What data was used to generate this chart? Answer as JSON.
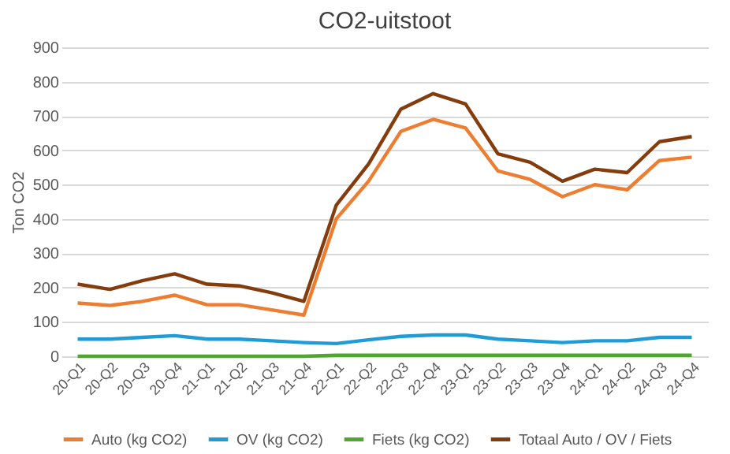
{
  "chart_data": {
    "type": "line",
    "title": "CO2-uitstoot",
    "ylabel": "Ton  CO2",
    "categories": [
      "20-Q1",
      "20-Q2",
      "20-Q3",
      "20-Q4",
      "21-Q1",
      "21-Q2",
      "21-Q3",
      "21-Q4",
      "22-Q1",
      "22-Q2",
      "22-Q3",
      "22-Q4",
      "23-Q1",
      "23-Q2",
      "23-Q3",
      "23-Q4",
      "24-Q1",
      "24-Q2",
      "24-Q3",
      "24-Q4"
    ],
    "series": [
      {
        "name": "Auto (kg CO2)",
        "color": "#ed7d31",
        "values": [
          155,
          148,
          160,
          178,
          150,
          150,
          135,
          120,
          400,
          510,
          655,
          690,
          665,
          540,
          515,
          465,
          500,
          485,
          570,
          580
        ]
      },
      {
        "name": "OV (kg CO2)",
        "color": "#1f9bd7",
        "values": [
          50,
          50,
          55,
          60,
          50,
          50,
          45,
          40,
          37,
          48,
          58,
          62,
          62,
          50,
          45,
          40,
          45,
          45,
          55,
          55
        ]
      },
      {
        "name": "Fiets (kg CO2)",
        "color": "#4ea72e",
        "values": [
          0,
          0,
          0,
          0,
          0,
          0,
          0,
          0,
          3,
          3,
          3,
          3,
          3,
          3,
          3,
          3,
          3,
          3,
          3,
          3
        ]
      },
      {
        "name": "Totaal Auto / OV / Fiets",
        "color": "#843c0c",
        "values": [
          210,
          195,
          220,
          240,
          210,
          205,
          185,
          160,
          440,
          560,
          720,
          765,
          735,
          590,
          565,
          510,
          545,
          535,
          625,
          640
        ]
      }
    ],
    "ylim": [
      0,
      900
    ],
    "yticks": [
      0,
      100,
      200,
      300,
      400,
      500,
      600,
      700,
      800,
      900
    ],
    "grid": "y",
    "legend": "bottom"
  }
}
